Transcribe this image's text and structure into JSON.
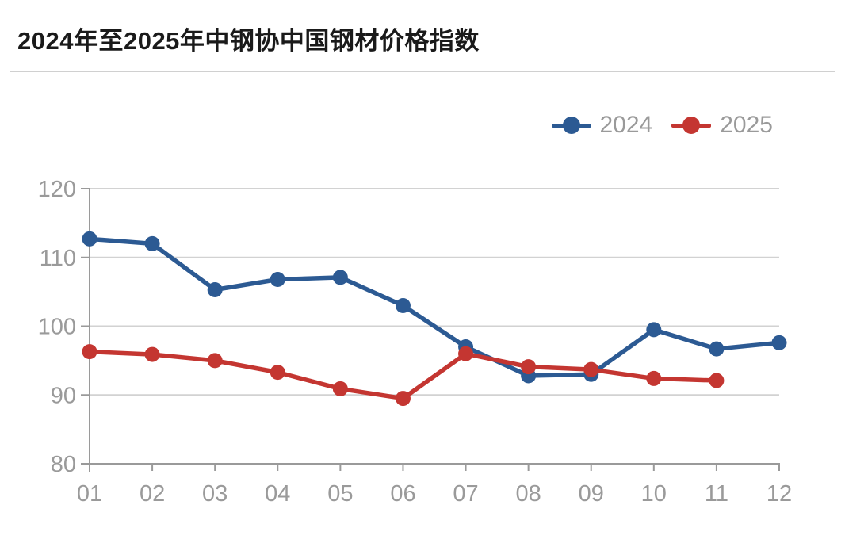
{
  "chart_data": {
    "type": "line",
    "title": "2024年至2025年中钢协中国钢材价格指数",
    "xlabel": "",
    "ylabel": "",
    "categories": [
      "01",
      "02",
      "03",
      "04",
      "05",
      "06",
      "07",
      "08",
      "09",
      "10",
      "11",
      "12"
    ],
    "series": [
      {
        "name": "2024",
        "color": "#2C5A93",
        "values": [
          112.7,
          112.0,
          105.3,
          106.8,
          107.1,
          103.0,
          97.0,
          92.8,
          93.0,
          99.5,
          96.7,
          97.6
        ]
      },
      {
        "name": "2025",
        "color": "#C43631",
        "values": [
          96.3,
          95.9,
          95.0,
          93.3,
          90.9,
          89.5,
          96.0,
          94.1,
          93.7,
          92.4,
          92.1
        ]
      }
    ],
    "ylim": [
      80,
      120
    ],
    "yticks": [
      80,
      90,
      100,
      110,
      120
    ],
    "grid": true,
    "legend_position": "top-right",
    "marker": "circle"
  },
  "colors": {
    "axis": "#9a9a9a",
    "gridline": "#d2d2d2",
    "tick_label": "#9a9a9a",
    "legend_text": "#9a9a9a",
    "title_text": "#1a1a1a",
    "divider": "#d0d0d0",
    "background": "#ffffff"
  }
}
